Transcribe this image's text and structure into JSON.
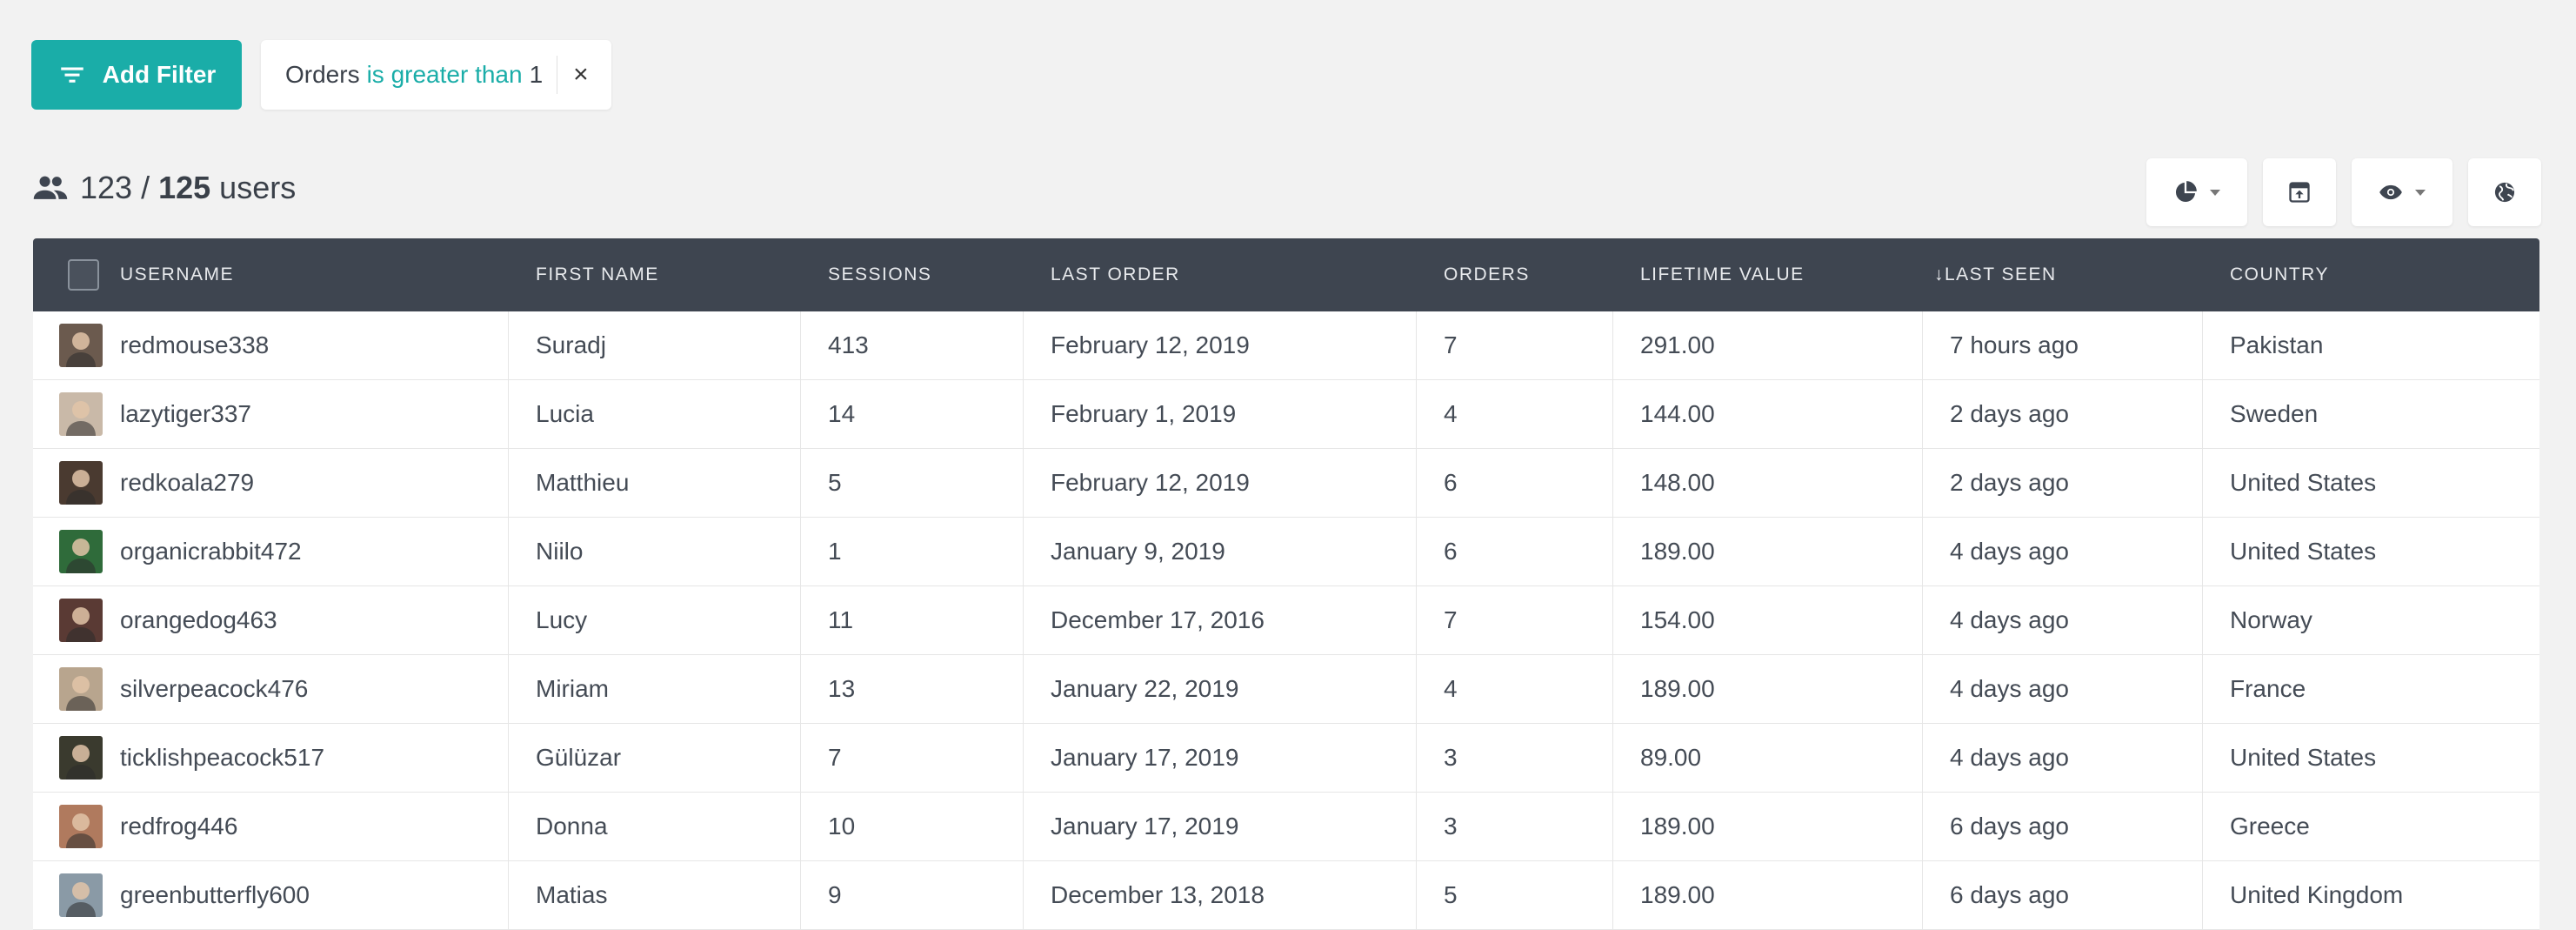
{
  "filter_bar": {
    "add_filter_label": "Add Filter",
    "chip": {
      "field": "Orders",
      "operator": "is greater than",
      "value": "1",
      "close": "×"
    }
  },
  "summary": {
    "shown": "123",
    "separator": "/",
    "total": "125",
    "unit": "users"
  },
  "toolbar": {
    "icons": [
      "pie-chart-icon",
      "export-icon",
      "visibility-icon",
      "globe-icon"
    ]
  },
  "table": {
    "columns": [
      "Username",
      "First Name",
      "Sessions",
      "Last Order",
      "Orders",
      "Lifetime Value",
      "↓Last Seen",
      "Country"
    ],
    "rows": [
      {
        "username": "redmouse338",
        "first_name": "Suradj",
        "sessions": "413",
        "last_order": "February 12, 2019",
        "orders": "7",
        "lifetime_value": "291.00",
        "last_seen": "7 hours ago",
        "country": "Pakistan",
        "avatar_color": "#6b5a4e"
      },
      {
        "username": "lazytiger337",
        "first_name": "Lucia",
        "sessions": "14",
        "last_order": "February 1, 2019",
        "orders": "4",
        "lifetime_value": "144.00",
        "last_seen": "2 days ago",
        "country": "Sweden",
        "avatar_color": "#c9b9a8"
      },
      {
        "username": "redkoala279",
        "first_name": "Matthieu",
        "sessions": "5",
        "last_order": "February 12, 2019",
        "orders": "6",
        "lifetime_value": "148.00",
        "last_seen": "2 days ago",
        "country": "United States",
        "avatar_color": "#4a3a30"
      },
      {
        "username": "organicrabbit472",
        "first_name": "Niilo",
        "sessions": "1",
        "last_order": "January 9, 2019",
        "orders": "6",
        "lifetime_value": "189.00",
        "last_seen": "4 days ago",
        "country": "United States",
        "avatar_color": "#2f6b3a"
      },
      {
        "username": "orangedog463",
        "first_name": "Lucy",
        "sessions": "11",
        "last_order": "December 17, 2016",
        "orders": "7",
        "lifetime_value": "154.00",
        "last_seen": "4 days ago",
        "country": "Norway",
        "avatar_color": "#5a3a34"
      },
      {
        "username": "silverpeacock476",
        "first_name": "Miriam",
        "sessions": "13",
        "last_order": "January 22, 2019",
        "orders": "4",
        "lifetime_value": "189.00",
        "last_seen": "4 days ago",
        "country": "France",
        "avatar_color": "#b8a58e"
      },
      {
        "username": "ticklishpeacock517",
        "first_name": "Gülüzar",
        "sessions": "7",
        "last_order": "January 17, 2019",
        "orders": "3",
        "lifetime_value": "89.00",
        "last_seen": "4 days ago",
        "country": "United States",
        "avatar_color": "#3a3a2e"
      },
      {
        "username": "redfrog446",
        "first_name": "Donna",
        "sessions": "10",
        "last_order": "January 17, 2019",
        "orders": "3",
        "lifetime_value": "189.00",
        "last_seen": "6 days ago",
        "country": "Greece",
        "avatar_color": "#b07a5e"
      },
      {
        "username": "greenbutterfly600",
        "first_name": "Matias",
        "sessions": "9",
        "last_order": "December 13, 2018",
        "orders": "5",
        "lifetime_value": "189.00",
        "last_seen": "6 days ago",
        "country": "United Kingdom",
        "avatar_color": "#8a9aa6"
      }
    ]
  }
}
